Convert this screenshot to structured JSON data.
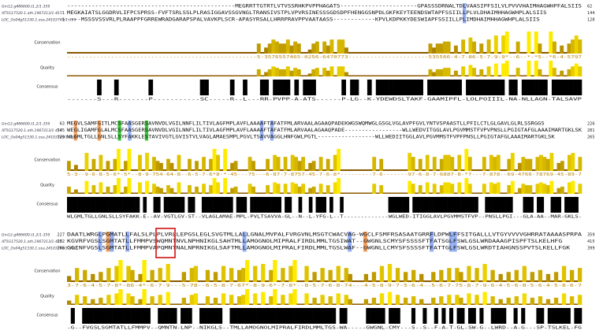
{
  "annotation_labels": [
    "Conservation",
    "Quality",
    "Consensus"
  ],
  "blocks": [
    {
      "rows": [
        {
          "name": "Gm12.g486600.t1.2/1-359",
          "seq": "------------------------------------------------MEGRRTTGTRTLVTVSSRHKPVPPHAGATS----------------------GPASSSDRNALTDLVAASIPFSILVLPVVVHAIMHAGWHPFALSIIS",
          "end": 62
        },
        {
          "name": "AT5G17520.1.ath.1967213/1-415",
          "start": 1,
          "seq": "MEGKAIATSLGGDRVLIFPCSPRSS-FVFTSRLSSLPLRASIGGAVSSGVNGLTRANSIVSTPLVPVRSINESSSGDSDPFHENGGSNPDLGKFKEYTEENDSWTAPFSSIILLPLVLDHAIMHHAGWHPLALSIIS",
          "end": 144
        },
        {
          "name": "LOC_Os04g51330.1.osa.24103749/1-399",
          "start": 1,
          "seq": "----MSSSVSSVRLPLRAAPPFGRREWRADGARAPSPALVAVKPLSCR-APASYRSALLHRRPRAVPPVAATAASS------------KPVLKDPKKYDESWIAPFSSIILLPLIMDHAIMHHAGWHPLALSIIS",
          "end": 128
        }
      ],
      "conservation": "----------------------------------------------------5-3576557465-0256-6470773----------------------535566-4-7-86-5-7-9-9*--6--*-*5--*6-4-5797",
      "consensus": "-------S---R-------P-----------SC-----R--L---RR-PVPP-A-ATS------P-LG--K-YDEWDSLTAKF-GAAMIPFL-LOLPOIIIL-NA-NLLAGN-TALSAVP"
    },
    {
      "rows": [
        {
          "name": "Gm12.g486600.t1.2/1-359",
          "start": 63,
          "seq": "MEGVLSAMFGITLMCSFAASGERSAVNVDLVGILNNFLILTIVLAGFMPLAVFLAAAAFTAFATFMLARVAALAGAAQPADEKWGSWQMWGLGSGLVGLAVPFGVLYNTVSPAASTLLPFILCTLGLGAVLGLRLSSRGGS",
          "end": 226
        },
        {
          "name": "AT5G17520.1.ath.1967213/1-415",
          "start": 145,
          "seq": "WEGLIGAMFGLALMCSFAASGERSAVNVDLVGILNNFLILTIVLAGFMPLAVFLAAAAFTAFATFMLARVAALAGAAQPADE-----------------WLLWEDVITGGLAVLPGVMMSTFVPVPNSLLPGIGTAFGLAAAIMARTGKLSK",
          "end": 281
        },
        {
          "name": "LOC_Os04g51330.1.osa.24103749/1-399",
          "start": 129,
          "seq": "WLGMLTGLLGNLSLLSYFAKKLESTAVIVGTLGVISTVLVAGLAMAESMPLPGVLTSAVVAGGLHNFGWLPGTL-----------------WLLWEDIITGGLAVLPGVMMSTFVPFPNSLLPGIGTAFGLAAAIMARTGKLSK",
          "end": 265
        }
      ],
      "conservation": "5-3--9-6-8-5-6*-5*--8-9-754-64-8--6-5-7-6*8-*-45---75---6-87-7-8757-45-7-6-8*---------7-6-------97-6-8-7-6887-8-*7---7-878--69-4766-78769-45-89-7",
      "consensus": "WLGMLTGLLGNLSLLSYFAKK-E--AV-VGTLGV-ST--VLAGLAMAE-MPL-PVLTSAVVA-GL--N--L-YFG-L--T-------------WGLWED-ITIGGLAVLPGVMMSTFVP--PNSLLPGI---GLA-AA--MAR-GKLS-"
    },
    {
      "rows": [
        {
          "name": "Gm12.g486600.t1.2/1-359",
          "start": 227,
          "seq": "DAATLWRGLPGMATLLFALSLPLPLVRLLEPGSLEGLSVGTMLLALLGNALMVPALFVRGVNLMSGTCWACVAG-WGCLFSMFRSASAATGRRFLDPWLFFSITGALLLVTGYVVVVGHRRATAAAASPRPA",
          "end": 359
        },
        {
          "name": "AT5G17520.1.ath.1967213/1-415",
          "start": 282,
          "seq": "KGVRFVGSLSGMTATLLFMMPVSWQMNTNVLNPHNIKGLSAHTMLLAMOGNOLMIPRALFIRDLMMLTGSIWAT--GWGNLSCMYSFSSSSFTFATSGLFSWLGSLWRDAAAGPISPFTSLKELHFG",
          "end": 415
        },
        {
          "name": "LOC_Os04g51330.1.osa.24103749/1-399",
          "start": 266,
          "seq": "GGINFVGSLSGMTATLLFMMPVAPQMNTNALNPRNIKGLSAFTMLLAMOGNOLMIPRALFIRDLMMLTGSLWAF--GWGNLLCMYSFSSSSFTFATTGLFSWLGSLWRDTIAHGNSSPVTSLKELLFGK",
          "end": 399
        }
      ],
      "conservation": "3-7-6-4-5-7-8*-86-4*-6-7-9---5-78--6-5-8-7-67*-8-9-6*-7-8*--8-5-7-6-8-74---4-5-8-9-7-5-6-4--5-6-7-75-8-7-9-6-4-5-6-8-5-6-4-5-8-6-7",
      "consensus": "-G--FVGSLSGMTATLLFMMPV--QMNTN-LNP--NIKGLS--TMLLAMOGNOLMIPRALFIRDLMMLTGS-WA-----GWGNL-CMY---S--S--F-A-T-GL-SW-G--LWRD--A-G---SP-TSLKEL-FG"
    }
  ]
}
